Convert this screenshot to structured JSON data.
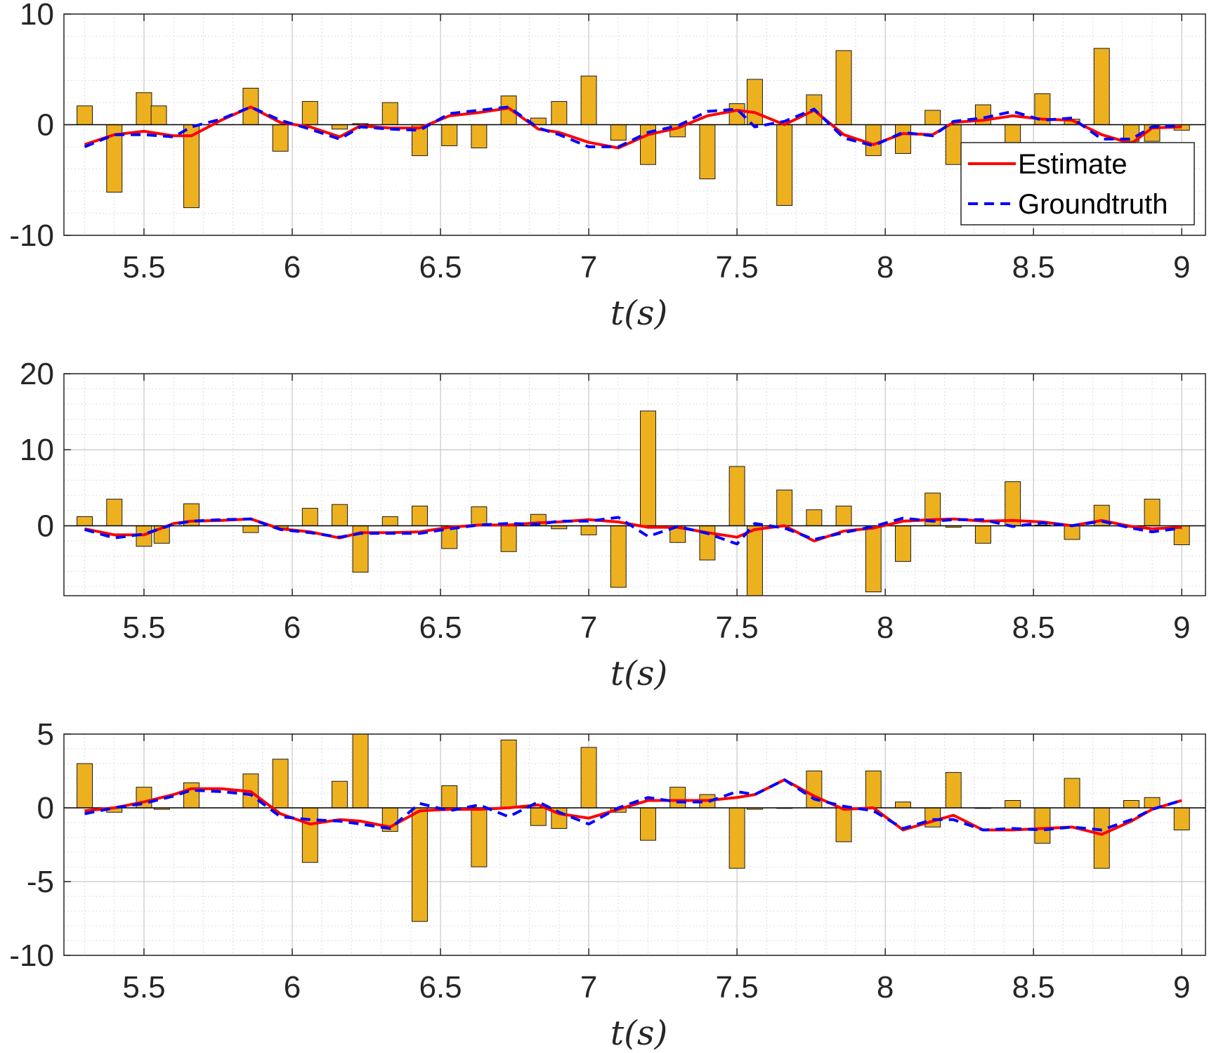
{
  "chart_data": [
    {
      "type": "bar",
      "xlabel": "t(s)",
      "xlim": [
        5.23,
        9.08
      ],
      "ylim": [
        -10,
        10
      ],
      "xticks": [
        5.5,
        6,
        6.5,
        7,
        7.5,
        8,
        8.5,
        9
      ],
      "xtick_labels": [
        "5.5",
        "6",
        "6.5",
        "7",
        "7.5",
        "8",
        "8.5",
        "9"
      ],
      "yticks": [
        -10,
        0,
        10
      ],
      "ytick_labels": [
        "-10",
        "0",
        "10"
      ],
      "grid": true,
      "bar_color": "#EDB120",
      "bar_x": [
        5.3,
        5.4,
        5.5,
        5.55,
        5.66,
        5.86,
        5.96,
        6.06,
        6.16,
        6.23,
        6.33,
        6.43,
        6.53,
        6.63,
        6.73,
        6.83,
        6.9,
        7.0,
        7.1,
        7.2,
        7.3,
        7.4,
        7.5,
        7.56,
        7.66,
        7.76,
        7.86,
        7.96,
        8.06,
        8.16,
        8.23,
        8.33,
        8.43,
        8.53,
        8.63,
        8.73,
        8.83,
        8.9,
        9.0
      ],
      "bar_values": [
        1.7,
        -6.1,
        2.9,
        1.7,
        -7.5,
        3.3,
        -2.4,
        2.1,
        -0.4,
        0.1,
        2.0,
        -2.8,
        -1.9,
        -2.1,
        2.6,
        0.6,
        2.1,
        4.4,
        -1.4,
        -3.6,
        -1.1,
        -4.9,
        1.9,
        4.1,
        -7.3,
        2.7,
        6.7,
        -2.8,
        -2.6,
        1.3,
        -3.6,
        1.8,
        -3.0,
        2.8,
        0.5,
        6.9,
        -1.5,
        -1.5,
        -0.5
      ],
      "legend": {
        "position": "right",
        "entries": [
          "Estimate",
          "Groundtruth"
        ]
      },
      "series": [
        {
          "name": "Estimate",
          "style": "solid",
          "color": "#FF0000",
          "x": [
            5.3,
            5.4,
            5.5,
            5.6,
            5.66,
            5.76,
            5.86,
            5.96,
            6.06,
            6.16,
            6.23,
            6.33,
            6.43,
            6.53,
            6.63,
            6.73,
            6.83,
            6.9,
            7.0,
            7.1,
            7.2,
            7.3,
            7.4,
            7.5,
            7.56,
            7.66,
            7.76,
            7.86,
            7.96,
            8.06,
            8.16,
            8.23,
            8.33,
            8.43,
            8.53,
            8.63,
            8.73,
            8.83,
            8.9,
            9.0
          ],
          "y": [
            -1.8,
            -0.9,
            -0.6,
            -1.0,
            -1.0,
            0.4,
            1.6,
            0.2,
            -0.2,
            -1.1,
            -0.1,
            -0.3,
            -0.3,
            0.8,
            1.1,
            1.5,
            -0.4,
            -0.7,
            -1.6,
            -2.1,
            -0.9,
            -0.3,
            0.8,
            1.3,
            1.1,
            0.0,
            1.3,
            -0.9,
            -1.8,
            -0.8,
            -0.9,
            0.2,
            0.4,
            0.8,
            0.5,
            0.4,
            -0.9,
            -1.7,
            -0.3,
            -0.2
          ]
        },
        {
          "name": "Groundtruth",
          "style": "dashed",
          "color": "#0000FF",
          "x": [
            5.3,
            5.4,
            5.5,
            5.6,
            5.66,
            5.76,
            5.86,
            5.96,
            6.06,
            6.16,
            6.23,
            6.33,
            6.43,
            6.53,
            6.63,
            6.73,
            6.83,
            6.9,
            7.0,
            7.1,
            7.2,
            7.3,
            7.4,
            7.5,
            7.56,
            7.66,
            7.76,
            7.86,
            7.96,
            8.06,
            8.16,
            8.23,
            8.33,
            8.43,
            8.53,
            8.63,
            8.73,
            8.83,
            8.9,
            9.0
          ],
          "y": [
            -2.0,
            -0.9,
            -0.9,
            -1.1,
            -0.2,
            0.5,
            1.6,
            0.4,
            -0.4,
            -1.3,
            -0.2,
            -0.4,
            -0.5,
            1.0,
            1.3,
            1.6,
            -0.3,
            -0.9,
            -2.0,
            -2.0,
            -0.7,
            -0.1,
            1.2,
            1.4,
            -0.2,
            0.3,
            1.4,
            -1.2,
            -1.9,
            -0.7,
            -1.0,
            0.3,
            0.6,
            1.2,
            0.4,
            0.6,
            -1.3,
            -1.3,
            -0.2,
            -0.1
          ]
        }
      ]
    },
    {
      "type": "bar",
      "xlabel": "t(s)",
      "xlim": [
        5.23,
        9.08
      ],
      "ylim": [
        -9.2,
        20
      ],
      "xticks": [
        5.5,
        6,
        6.5,
        7,
        7.5,
        8,
        8.5,
        9
      ],
      "xtick_labels": [
        "5.5",
        "6",
        "6.5",
        "7",
        "7.5",
        "8",
        "8.5",
        "9"
      ],
      "yticks": [
        0,
        10,
        20
      ],
      "ytick_labels": [
        "0",
        "10",
        "20"
      ],
      "grid": true,
      "bar_color": "#EDB120",
      "bar_x": [
        5.3,
        5.4,
        5.5,
        5.56,
        5.66,
        5.86,
        5.96,
        6.06,
        6.16,
        6.23,
        6.33,
        6.43,
        6.53,
        6.63,
        6.73,
        6.83,
        6.9,
        7.0,
        7.1,
        7.2,
        7.3,
        7.4,
        7.5,
        7.56,
        7.66,
        7.76,
        7.86,
        7.96,
        8.06,
        8.16,
        8.23,
        8.33,
        8.43,
        8.53,
        8.63,
        8.73,
        8.83,
        8.9,
        9.0
      ],
      "bar_values": [
        1.2,
        3.5,
        -2.7,
        -2.3,
        2.9,
        -0.9,
        -0.3,
        2.3,
        2.8,
        -6.1,
        1.2,
        2.6,
        -3.0,
        2.5,
        -3.4,
        1.5,
        -0.4,
        -1.2,
        -8.1,
        15.1,
        -2.2,
        -4.5,
        7.8,
        -9.2,
        4.7,
        2.1,
        2.6,
        -8.7,
        -4.7,
        4.3,
        -0.2,
        -2.3,
        5.8,
        0.1,
        -1.8,
        2.7,
        -0.2,
        3.5,
        -2.5
      ],
      "series": [
        {
          "name": "Estimate",
          "style": "solid",
          "color": "#FF0000",
          "x": [
            5.3,
            5.4,
            5.5,
            5.6,
            5.66,
            5.76,
            5.86,
            5.96,
            6.06,
            6.16,
            6.23,
            6.33,
            6.43,
            6.53,
            6.63,
            6.73,
            6.83,
            6.9,
            7.0,
            7.1,
            7.2,
            7.3,
            7.4,
            7.5,
            7.56,
            7.66,
            7.76,
            7.86,
            7.96,
            8.06,
            8.16,
            8.23,
            8.33,
            8.43,
            8.53,
            8.63,
            8.73,
            8.83,
            8.9,
            9.0
          ],
          "y": [
            -0.4,
            -1.2,
            -1.2,
            0.3,
            0.6,
            0.7,
            0.9,
            -0.4,
            -0.8,
            -1.6,
            -0.9,
            -0.9,
            -0.8,
            -0.2,
            0.1,
            0.1,
            0.4,
            0.5,
            0.8,
            0.5,
            -0.2,
            -0.2,
            -0.9,
            -1.5,
            -0.5,
            0.0,
            -2.0,
            -0.7,
            -0.3,
            0.6,
            0.8,
            0.9,
            0.6,
            0.7,
            0.5,
            0.0,
            0.7,
            -0.1,
            -0.4,
            -0.2
          ]
        },
        {
          "name": "Groundtruth",
          "style": "dashed",
          "color": "#0000FF",
          "x": [
            5.3,
            5.4,
            5.5,
            5.6,
            5.66,
            5.76,
            5.86,
            5.96,
            6.06,
            6.16,
            6.23,
            6.33,
            6.43,
            6.53,
            6.63,
            6.73,
            6.83,
            6.9,
            7.0,
            7.1,
            7.2,
            7.3,
            7.4,
            7.5,
            7.56,
            7.66,
            7.76,
            7.86,
            7.96,
            8.06,
            8.16,
            8.23,
            8.33,
            8.43,
            8.53,
            8.63,
            8.73,
            8.83,
            8.9,
            9.0
          ],
          "y": [
            -0.5,
            -1.6,
            -1.1,
            0.2,
            0.6,
            0.8,
            0.9,
            -0.5,
            -0.9,
            -1.5,
            -1.0,
            -1.0,
            -1.0,
            -0.4,
            0.1,
            0.3,
            0.2,
            0.6,
            0.6,
            1.1,
            -1.4,
            -0.1,
            -1.0,
            -2.4,
            0.3,
            -0.3,
            -1.8,
            -0.9,
            -0.1,
            1.0,
            0.6,
            0.8,
            0.8,
            -0.1,
            0.4,
            0.0,
            0.6,
            -0.3,
            -0.8,
            -0.3
          ]
        }
      ]
    },
    {
      "type": "bar",
      "xlabel": "t(s)",
      "xlim": [
        5.23,
        9.08
      ],
      "ylim": [
        -10,
        5
      ],
      "xticks": [
        5.5,
        6,
        6.5,
        7,
        7.5,
        8,
        8.5,
        9
      ],
      "xtick_labels": [
        "5.5",
        "6",
        "6.5",
        "7",
        "7.5",
        "8",
        "8.5",
        "9"
      ],
      "yticks": [
        -10,
        -5,
        0,
        5
      ],
      "ytick_labels": [
        "-10",
        "-5",
        "0",
        "5"
      ],
      "grid": true,
      "bar_color": "#EDB120",
      "bar_x": [
        5.3,
        5.4,
        5.5,
        5.56,
        5.66,
        5.86,
        5.96,
        6.06,
        6.16,
        6.23,
        6.33,
        6.43,
        6.53,
        6.63,
        6.73,
        6.83,
        6.9,
        7.0,
        7.1,
        7.2,
        7.3,
        7.4,
        7.5,
        7.56,
        7.66,
        7.76,
        7.86,
        7.96,
        8.06,
        8.16,
        8.23,
        8.33,
        8.43,
        8.53,
        8.63,
        8.73,
        8.83,
        8.9,
        9.0
      ],
      "bar_values": [
        3.0,
        -0.3,
        1.4,
        -0.1,
        1.7,
        2.3,
        3.3,
        -3.7,
        1.8,
        5.0,
        -1.6,
        -7.7,
        1.5,
        -4.0,
        4.6,
        -1.2,
        -1.4,
        4.1,
        -0.3,
        -2.2,
        1.4,
        0.9,
        -4.1,
        -0.1,
        0.0,
        2.5,
        -2.3,
        2.5,
        0.4,
        -1.3,
        2.4,
        0.0,
        0.5,
        -2.4,
        2.0,
        -4.1,
        0.5,
        0.7,
        -1.5
      ],
      "series": [
        {
          "name": "Estimate",
          "style": "solid",
          "color": "#FF0000",
          "x": [
            5.3,
            5.4,
            5.5,
            5.6,
            5.66,
            5.76,
            5.86,
            5.96,
            6.06,
            6.16,
            6.23,
            6.33,
            6.43,
            6.53,
            6.63,
            6.73,
            6.83,
            6.9,
            7.0,
            7.1,
            7.2,
            7.3,
            7.4,
            7.5,
            7.56,
            7.66,
            7.76,
            7.86,
            7.96,
            8.06,
            8.16,
            8.23,
            8.33,
            8.43,
            8.53,
            8.63,
            8.73,
            8.83,
            8.9,
            9.0
          ],
          "y": [
            -0.2,
            0.0,
            0.4,
            0.9,
            1.3,
            1.3,
            1.1,
            -0.4,
            -1.1,
            -0.8,
            -0.9,
            -1.3,
            -0.2,
            -0.1,
            -0.1,
            0.0,
            0.2,
            -0.4,
            -0.7,
            -0.1,
            0.5,
            0.5,
            0.5,
            0.7,
            0.9,
            1.9,
            0.8,
            -0.1,
            0.0,
            -1.5,
            -0.9,
            -0.5,
            -1.5,
            -1.5,
            -1.4,
            -1.3,
            -1.8,
            -0.9,
            -0.1,
            0.5
          ]
        },
        {
          "name": "Groundtruth",
          "style": "dashed",
          "color": "#0000FF",
          "x": [
            5.3,
            5.4,
            5.5,
            5.6,
            5.66,
            5.76,
            5.86,
            5.96,
            6.06,
            6.16,
            6.23,
            6.33,
            6.43,
            6.53,
            6.63,
            6.73,
            6.83,
            6.9,
            7.0,
            7.1,
            7.2,
            7.3,
            7.4,
            7.5,
            7.56,
            7.66,
            7.76,
            7.86,
            7.96,
            8.06,
            8.16,
            8.23,
            8.33,
            8.43,
            8.53,
            8.63,
            8.73,
            8.83,
            8.9,
            9.0
          ],
          "y": [
            -0.4,
            0.0,
            0.3,
            0.8,
            1.2,
            1.1,
            0.9,
            -0.6,
            -0.8,
            -0.9,
            -1.1,
            -1.4,
            0.3,
            -0.2,
            0.2,
            -0.6,
            0.4,
            -0.3,
            -1.1,
            0.0,
            0.7,
            0.4,
            0.4,
            1.1,
            0.9,
            1.9,
            0.6,
            0.1,
            -0.2,
            -1.4,
            -0.8,
            -0.8,
            -1.5,
            -1.4,
            -1.5,
            -1.3,
            -1.5,
            -0.8,
            -0.1,
            0.5
          ]
        }
      ]
    }
  ]
}
